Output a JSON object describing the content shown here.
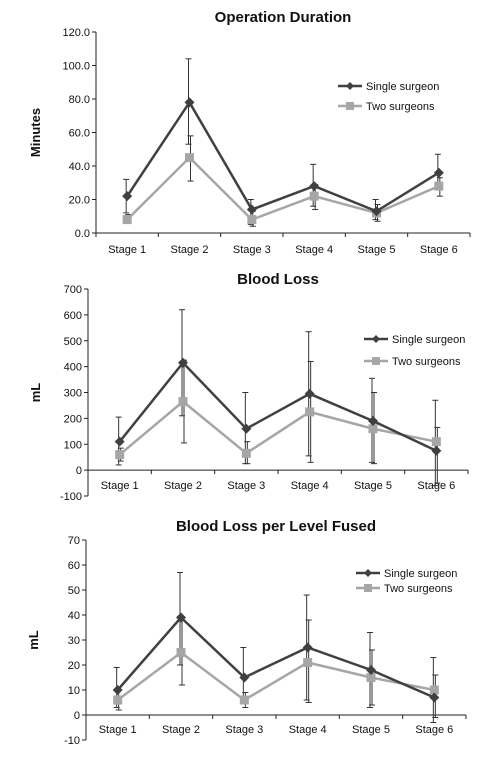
{
  "chart_data": [
    {
      "type": "line",
      "title": "Operation Duration",
      "ylabel": "Minutes",
      "xlabel": "",
      "categories": [
        "Stage 1",
        "Stage 2",
        "Stage 3",
        "Stage 4",
        "Stage 5",
        "Stage 6"
      ],
      "ylim": [
        0,
        120
      ],
      "yticks": [
        0,
        20,
        40,
        60,
        80,
        100,
        120
      ],
      "ytick_format": "fixed1",
      "legend_position": "top-right",
      "series": [
        {
          "name": "Single surgeon",
          "color": "#404040",
          "marker": "diamond",
          "values": [
            22,
            78,
            14,
            28,
            13,
            36
          ],
          "err_low": [
            12,
            53,
            5,
            16,
            8,
            26
          ],
          "err_high": [
            32,
            104,
            20,
            41,
            20,
            47
          ]
        },
        {
          "name": "Two surgeons",
          "color": "#a6a6a6",
          "marker": "square",
          "values": [
            8,
            45,
            8,
            22,
            12,
            28
          ],
          "err_low": [
            6,
            31,
            4,
            14,
            7,
            22
          ],
          "err_high": [
            11,
            58,
            13,
            29,
            17,
            33
          ]
        }
      ]
    },
    {
      "type": "line",
      "title": "Blood Loss",
      "ylabel": "mL",
      "xlabel": "",
      "categories": [
        "Stage 1",
        "Stage 2",
        "Stage 3",
        "Stage 4",
        "Stage 5",
        "Stage 6"
      ],
      "ylim": [
        -100,
        700
      ],
      "yticks": [
        -100,
        0,
        100,
        200,
        300,
        400,
        500,
        600,
        700
      ],
      "ytick_format": "int",
      "legend_position": "right",
      "series": [
        {
          "name": "Single surgeon",
          "color": "#404040",
          "marker": "diamond",
          "values": [
            110,
            415,
            160,
            295,
            190,
            75
          ],
          "err_low": [
            20,
            210,
            25,
            55,
            30,
            -60
          ],
          "err_high": [
            205,
            620,
            300,
            535,
            355,
            270
          ]
        },
        {
          "name": "Two surgeons",
          "color": "#a6a6a6",
          "marker": "square",
          "values": [
            60,
            265,
            65,
            225,
            160,
            110
          ],
          "err_low": [
            35,
            105,
            25,
            30,
            25,
            -50
          ],
          "err_high": [
            85,
            425,
            110,
            420,
            300,
            165
          ]
        }
      ]
    },
    {
      "type": "line",
      "title": "Blood Loss per Level Fused",
      "ylabel": "mL",
      "xlabel": "",
      "categories": [
        "Stage 1",
        "Stage 2",
        "Stage 3",
        "Stage 4",
        "Stage 5",
        "Stage 6"
      ],
      "ylim": [
        -10,
        70
      ],
      "yticks": [
        -10,
        0,
        10,
        20,
        30,
        40,
        50,
        60,
        70
      ],
      "ytick_format": "int",
      "legend_position": "top-right",
      "series": [
        {
          "name": "Single surgeon",
          "color": "#404040",
          "marker": "diamond",
          "values": [
            10,
            39,
            15,
            27,
            18,
            7
          ],
          "err_low": [
            3,
            20,
            5,
            6,
            3,
            -3
          ],
          "err_high": [
            19,
            57,
            27,
            48,
            33,
            23
          ]
        },
        {
          "name": "Two surgeons",
          "color": "#a6a6a6",
          "marker": "square",
          "values": [
            6,
            25,
            6,
            21,
            15,
            10
          ],
          "err_low": [
            2,
            12,
            3,
            5,
            4,
            -1
          ],
          "err_high": [
            10,
            38,
            9,
            38,
            26,
            16
          ]
        }
      ]
    }
  ]
}
